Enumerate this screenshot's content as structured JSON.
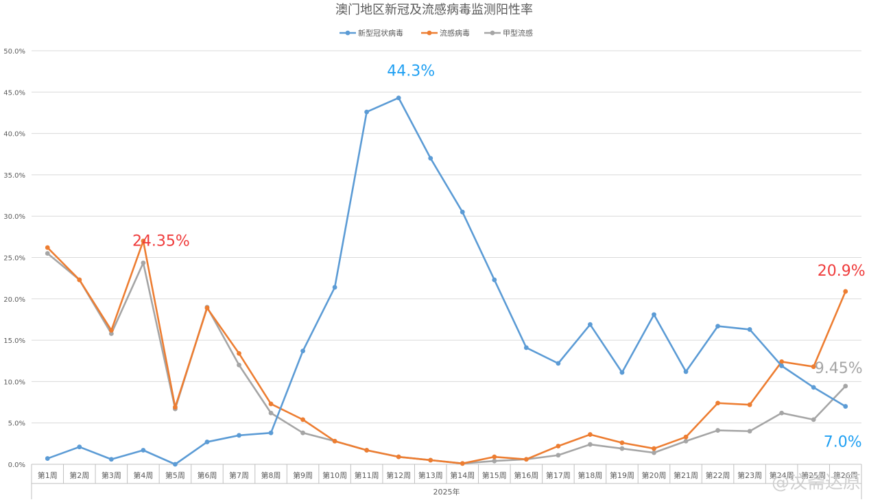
{
  "chart_data": {
    "type": "line",
    "title": "澳门地区新冠及流感病毒监测阳性率",
    "xlabel": "2025年",
    "ylabel": "",
    "ylim": [
      0,
      50
    ],
    "y_ticks": [
      "0.0%",
      "5.0%",
      "10.0%",
      "15.0%",
      "20.0%",
      "25.0%",
      "30.0%",
      "35.0%",
      "40.0%",
      "45.0%",
      "50.0%"
    ],
    "y_tick_values": [
      0,
      5,
      10,
      15,
      20,
      25,
      30,
      35,
      40,
      45,
      50
    ],
    "grid": "horizontal",
    "legend_position": "top",
    "categories": [
      "第1周",
      "第2周",
      "第3周",
      "第4周",
      "第5周",
      "第6周",
      "第7周",
      "第8周",
      "第9周",
      "第10周",
      "第11周",
      "第12周",
      "第13周",
      "第14周",
      "第15周",
      "第16周",
      "第17周",
      "第18周",
      "第19周",
      "第20周",
      "第21周",
      "第22周",
      "第23周",
      "第24周",
      "第25周",
      "第26周"
    ],
    "series": [
      {
        "name": "新型冠状病毒",
        "color": "#5b9bd5",
        "values": [
          0.7,
          2.1,
          0.6,
          1.7,
          0.0,
          2.7,
          3.5,
          3.8,
          13.7,
          21.4,
          42.6,
          44.3,
          37.0,
          30.5,
          22.3,
          14.1,
          12.2,
          16.9,
          11.1,
          18.1,
          11.2,
          16.7,
          16.3,
          11.9,
          9.3,
          7.0
        ]
      },
      {
        "name": "流感病毒",
        "color": "#ed7d31",
        "values": [
          26.2,
          22.3,
          16.2,
          27.0,
          6.9,
          18.9,
          13.4,
          7.3,
          5.4,
          2.8,
          1.7,
          0.9,
          0.5,
          0.1,
          0.9,
          0.6,
          2.2,
          3.6,
          2.6,
          1.9,
          3.3,
          7.4,
          7.2,
          12.4,
          11.8,
          20.9
        ]
      },
      {
        "name": "甲型流感",
        "color": "#a5a5a5",
        "values": [
          25.5,
          22.3,
          15.8,
          24.35,
          6.7,
          19.0,
          12.0,
          6.2,
          3.8,
          2.8,
          1.7,
          0.9,
          0.5,
          0.1,
          0.4,
          0.6,
          1.1,
          2.4,
          1.9,
          1.4,
          2.8,
          4.1,
          4.0,
          6.2,
          5.4,
          9.45
        ]
      }
    ],
    "annotations": [
      {
        "text": "44.3%",
        "category": "第12周",
        "value": 44.3,
        "color": "#1e9ff2"
      },
      {
        "text": "24.35%",
        "category": "第4周",
        "value": 24.35,
        "color": "#ef3b3b"
      },
      {
        "text": "20.9%",
        "category": "第26周",
        "value": 20.9,
        "color": "#ef3b3b"
      },
      {
        "text": "9.45%",
        "category": "第26周",
        "value": 9.45,
        "color": "#a5a5a5"
      },
      {
        "text": "7.0%",
        "category": "第26周",
        "value": 7.0,
        "color": "#1e9ff2"
      }
    ]
  },
  "watermark": "@汶斋达原"
}
